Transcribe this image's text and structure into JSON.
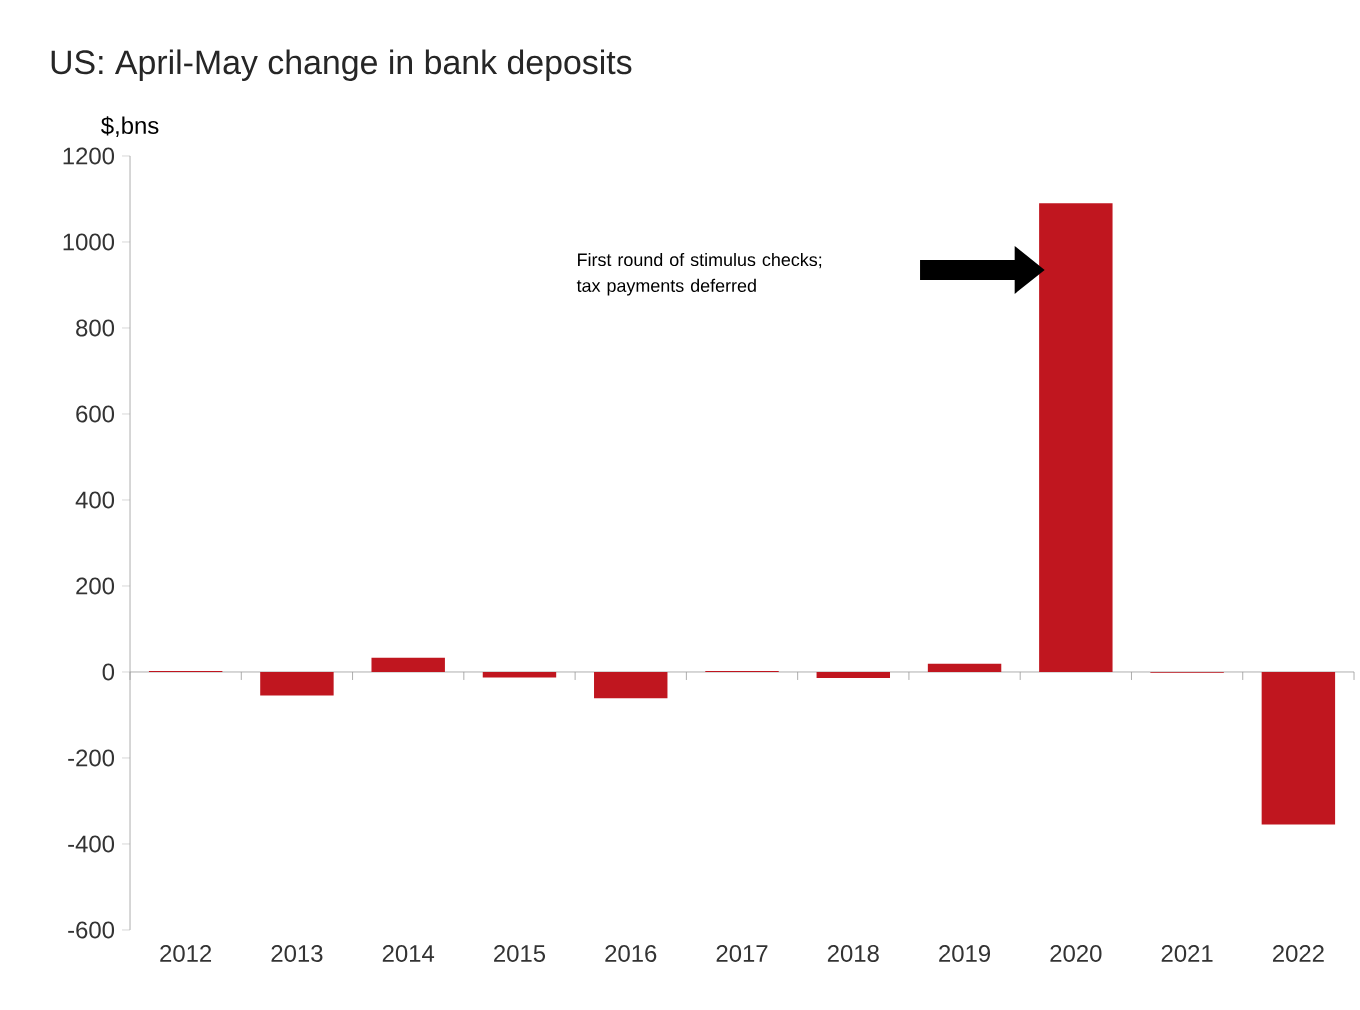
{
  "chart_data": {
    "type": "bar",
    "title": "US: April-May change in bank deposits",
    "ylabel": "$,bns",
    "categories": [
      "2012",
      "2013",
      "2014",
      "2015",
      "2016",
      "2017",
      "2018",
      "2019",
      "2020",
      "2021",
      "2022"
    ],
    "values": [
      2,
      -55,
      33,
      -13,
      -61,
      2,
      -14,
      19,
      1090,
      -2,
      -355
    ],
    "color": "#c0161f",
    "ylim": [
      -600,
      1200
    ],
    "yticks": [
      -600,
      -400,
      -200,
      0,
      200,
      400,
      600,
      800,
      1000,
      1200
    ],
    "annotations": [
      "First round of stimulus checks; tax payments deferred"
    ]
  }
}
